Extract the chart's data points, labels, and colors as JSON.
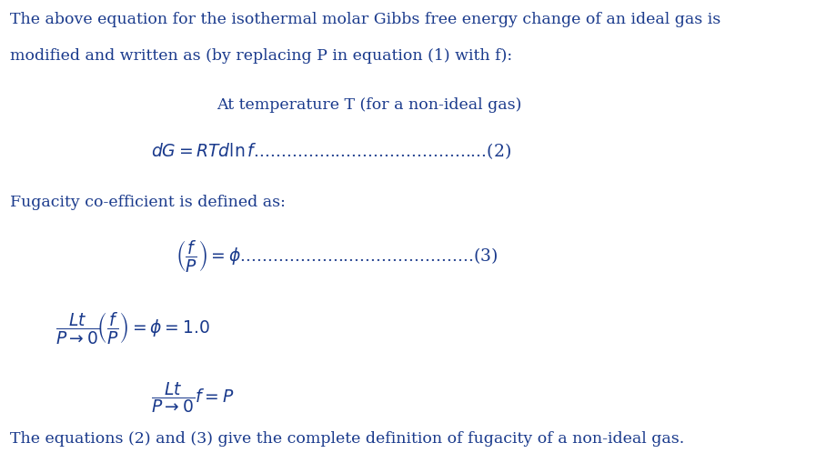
{
  "background_color": "#ffffff",
  "text_color": "#1a3a8c",
  "figsize": [
    8.97,
    5.09
  ],
  "dpi": 100,
  "line1": "The above equation for the isothermal molar Gibbs free energy change of an ideal gas is",
  "line2": "modified and written as (by replacing P in equation (1) with f):",
  "line3": "At temperature T (for a non-ideal gas)",
  "line5": "Fugacity co-efficient is defined as:",
  "line_last": "The equations (2) and (3) give the complete definition of fugacity of a non-ideal gas.",
  "font_size_text": 12.5,
  "font_size_eq": 13.5,
  "dots2": "...........................................(2)",
  "dots3": "...........................................(3)"
}
